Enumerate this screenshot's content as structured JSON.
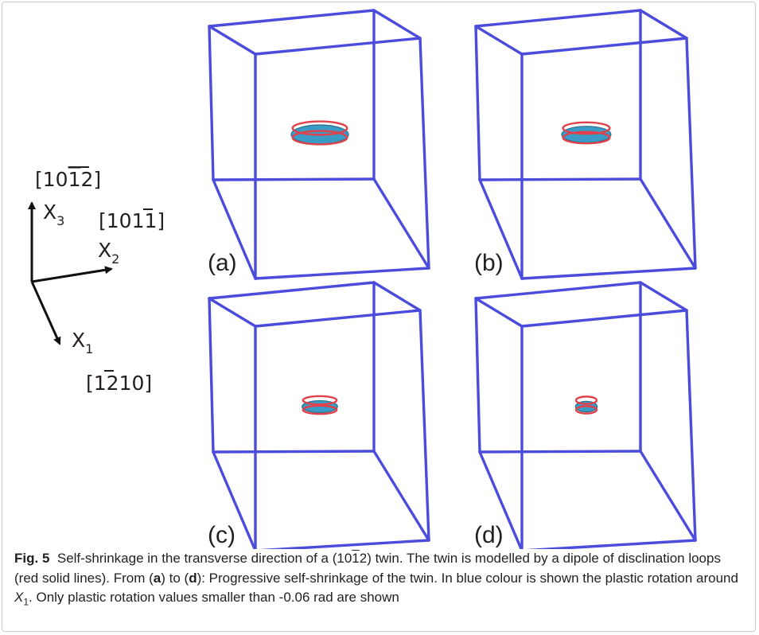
{
  "axes": {
    "x3": {
      "direction": "[10̄1̄2]",
      "base": "[10",
      "bar": "1",
      "tail": "2]",
      "symbol": "X",
      "sub": "3"
    },
    "x2": {
      "direction": "[10̄1̄1]",
      "base": "[10",
      "bar": "1",
      "tail": "1]",
      "symbol": "X",
      "sub": "2"
    },
    "x1": {
      "direction": "[1̄2̄10]",
      "base": "[1",
      "bar": "2",
      "tail": "10]",
      "symbol": "X",
      "sub": "1"
    }
  },
  "panels": [
    {
      "label": "(a)",
      "loop_scale": 1.0
    },
    {
      "label": "(b)",
      "loop_scale": 0.86
    },
    {
      "label": "(c)",
      "loop_scale": 0.62
    },
    {
      "label": "(d)",
      "loop_scale": 0.38
    }
  ],
  "colors": {
    "frame": "#4b4bdc",
    "loop": "#e0414b",
    "rotation": "#3a9cc6"
  },
  "caption": {
    "fig_label": "Fig. 5",
    "part1": "Self-shrinkage in the transverse direction of a (10",
    "bar": "1",
    "part2": "2) twin. The twin is modelled by a dipole of disclination loops (red solid lines). From (",
    "a": "a",
    "part3": ") to (",
    "d": "d",
    "part4": "): Progressive self-shrinkage of the twin. In blue colour is shown the plastic rotation around ",
    "x": "X",
    "sub": "1",
    "part5": ". Only plastic rotation values smaller than -0.06 rad are shown"
  }
}
